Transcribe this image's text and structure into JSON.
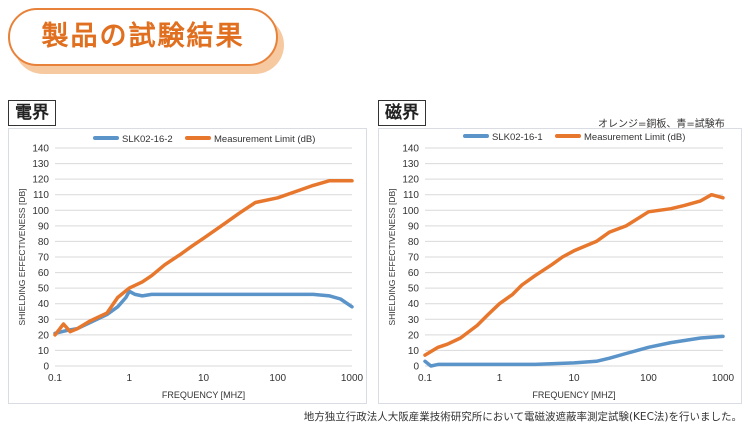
{
  "header": {
    "title": "製品の試験結果"
  },
  "notes": {
    "legend_note": "オレンジ=銅板、青=試験布"
  },
  "footer": {
    "text": "地方独立行政法人大阪産業技術研究所において電磁波遮蔽率測定試験(KEC法)を行いました。"
  },
  "colors": {
    "orange": "#e8772e",
    "blue": "#5b94c9",
    "accent": "#e06f1f"
  },
  "chart_data": [
    {
      "type": "line",
      "tag": "電界",
      "xscale": "log",
      "xlim": [
        0.1,
        1000
      ],
      "ylim": [
        0,
        140
      ],
      "yticks": [
        0,
        10,
        20,
        30,
        40,
        50,
        60,
        70,
        80,
        90,
        100,
        110,
        120,
        130,
        140
      ],
      "xticks": [
        "0.1",
        "1",
        "10",
        "100",
        "1000"
      ],
      "xlabel": "FREQUENCY [MHZ]",
      "ylabel": "SHIELDING EFFECTIVENESS [DB]",
      "legend_position": "top",
      "series": [
        {
          "name": "SLK02-16-2",
          "color": "#5b94c9",
          "x": [
            0.1,
            0.15,
            0.2,
            0.3,
            0.5,
            0.7,
            0.9,
            1.0,
            1.2,
            1.5,
            2,
            3,
            5,
            10,
            30,
            100,
            300,
            500,
            700,
            1000
          ],
          "y": [
            21,
            23,
            24,
            28,
            33,
            38,
            44,
            48,
            46,
            45,
            46,
            46,
            46,
            46,
            46,
            46,
            46,
            45,
            43,
            38
          ]
        },
        {
          "name": "Measurement Limit (dB)",
          "color": "#e8772e",
          "x": [
            0.1,
            0.13,
            0.16,
            0.2,
            0.3,
            0.5,
            0.7,
            1.0,
            1.5,
            2,
            3,
            5,
            7,
            10,
            20,
            30,
            50,
            100,
            200,
            300,
            500,
            700,
            1000
          ],
          "y": [
            20,
            27,
            22,
            24,
            29,
            34,
            44,
            50,
            54,
            58,
            65,
            72,
            77,
            82,
            92,
            98,
            105,
            108,
            113,
            116,
            119,
            119,
            119
          ]
        }
      ]
    },
    {
      "type": "line",
      "tag": "磁界",
      "xscale": "log",
      "xlim": [
        0.1,
        1000
      ],
      "ylim": [
        0,
        140
      ],
      "yticks": [
        0,
        10,
        20,
        30,
        40,
        50,
        60,
        70,
        80,
        90,
        100,
        110,
        120,
        130,
        140
      ],
      "xticks": [
        "0.1",
        "1",
        "10",
        "100",
        "1000"
      ],
      "xlabel": "FREQUENCY [MHZ]",
      "ylabel": "SHIELDING EFFECTIVENESS [DB]",
      "legend_position": "top",
      "series": [
        {
          "name": "SLK02-16-1",
          "color": "#5b94c9",
          "x": [
            0.1,
            0.12,
            0.15,
            0.2,
            0.5,
            1,
            3,
            10,
            20,
            30,
            50,
            100,
            200,
            500,
            1000
          ],
          "y": [
            3,
            0,
            1,
            1,
            1,
            1,
            1,
            2,
            3,
            5,
            8,
            12,
            15,
            18,
            19
          ]
        },
        {
          "name": "Measurement Limit (dB)",
          "color": "#e8772e",
          "x": [
            0.1,
            0.15,
            0.2,
            0.3,
            0.5,
            0.7,
            1.0,
            1.5,
            2,
            3,
            5,
            7,
            10,
            20,
            30,
            50,
            100,
            200,
            300,
            500,
            700,
            1000
          ],
          "y": [
            7,
            12,
            14,
            18,
            26,
            33,
            40,
            46,
            52,
            58,
            65,
            70,
            74,
            80,
            86,
            90,
            99,
            101,
            103,
            106,
            110,
            108
          ]
        }
      ]
    }
  ]
}
